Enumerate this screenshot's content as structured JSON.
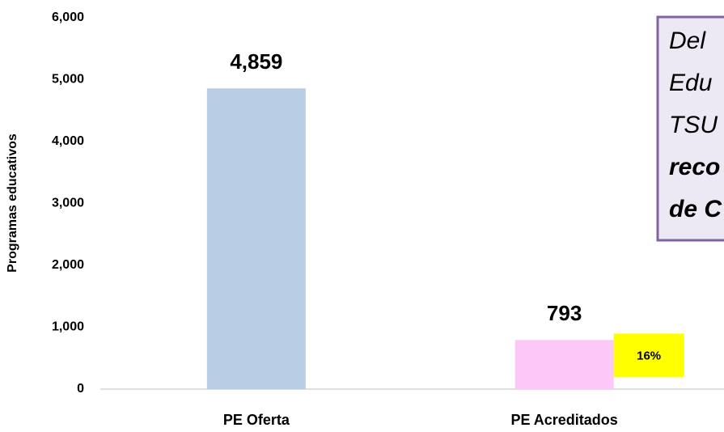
{
  "chart_data": {
    "type": "bar",
    "y_label": "Programas educativos",
    "categories": [
      "PE Oferta",
      "PE Acreditados"
    ],
    "values": [
      4859,
      793
    ],
    "value_labels": [
      "4,859",
      "793"
    ],
    "colors": [
      "#b9cde5",
      "#fcc8f8"
    ],
    "ylim": [
      0,
      6000
    ],
    "yticks": [
      0,
      {
        "value": 1000,
        "label": "1,000"
      },
      {
        "value": 2000,
        "label": "2,000"
      },
      {
        "value": 3000,
        "label": "3,000"
      },
      {
        "value": 4000,
        "label": "4,000"
      },
      {
        "value": 5000,
        "label": "5,000"
      },
      {
        "value": 6000,
        "label": "6,000"
      }
    ],
    "grid": false,
    "annotations": [
      {
        "text": "16%",
        "color": "#ffff00"
      }
    ],
    "note_box": {
      "lines": [
        "Del",
        "Edu",
        "TSU",
        "reco",
        "de C"
      ],
      "bold_from": 3,
      "fill": "#ece8f4",
      "border": "#8064a2"
    }
  }
}
